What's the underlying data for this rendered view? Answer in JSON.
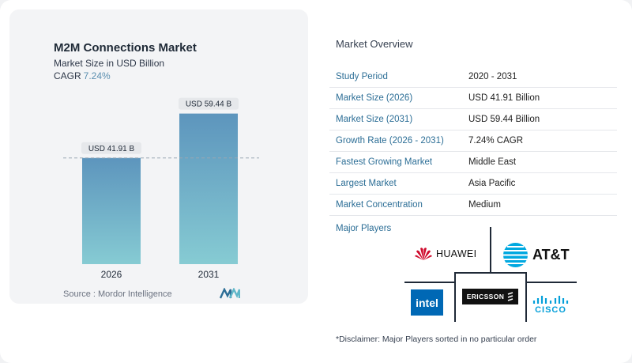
{
  "chart": {
    "title": "M2M Connections Market",
    "subtitle": "Market Size in USD Billion",
    "cagr_label": "CAGR",
    "cagr_value": "7.24%",
    "source": "Source :  Mordor Intelligence"
  },
  "chart_data": {
    "type": "bar",
    "categories": [
      "2026",
      "2031"
    ],
    "values": [
      41.91,
      59.44
    ],
    "data_labels": [
      "USD 41.91 B",
      "USD 59.44 B"
    ],
    "title": "M2M Connections Market",
    "subtitle": "Market Size in USD Billion",
    "xlabel": "",
    "ylabel": "",
    "ylim": [
      0,
      64
    ],
    "grid": false,
    "reference_line": 41.91,
    "colors": {
      "bar_top": "#5d95bd",
      "bar_bottom": "#86cbd3",
      "dashed_line": "#9aa6b2"
    }
  },
  "overview": {
    "title": "Market Overview",
    "rows": [
      {
        "label": "Study Period",
        "value": "2020 - 2031"
      },
      {
        "label": "Market Size (2026)",
        "value": "USD 41.91 Billion"
      },
      {
        "label": "Market Size (2031)",
        "value": "USD 59.44 Billion"
      },
      {
        "label": "Growth Rate (2026 - 2031)",
        "value": "7.24% CAGR"
      },
      {
        "label": "Fastest Growing Market",
        "value": "Middle East"
      },
      {
        "label": "Largest Market",
        "value": "Asia Pacific"
      },
      {
        "label": "Market Concentration",
        "value": "Medium"
      }
    ],
    "players_label": "Major Players",
    "players": [
      "HUAWEI",
      "AT&T",
      "intel",
      "ERICSSON",
      "CISCO"
    ],
    "disclaimer": "*Disclaimer: Major Players sorted in no particular order"
  },
  "colors": {
    "accent": "#2c6e96",
    "cagr": "#5b8fb0",
    "huawei_red": "#cf0a2c",
    "att_blue": "#00a8e0",
    "intel_blue": "#0068b5",
    "cisco_blue": "#049fd9"
  }
}
